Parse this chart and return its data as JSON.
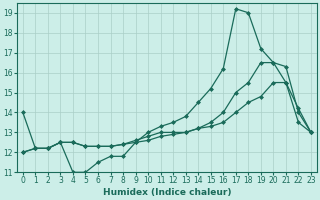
{
  "title": "",
  "xlabel": "Humidex (Indice chaleur)",
  "ylabel": "",
  "bg_color": "#cceee8",
  "line_color": "#1a6b5a",
  "grid_color": "#aacfc8",
  "ylim": [
    11,
    19.5
  ],
  "xlim": [
    -0.5,
    23.5
  ],
  "yticks": [
    11,
    12,
    13,
    14,
    15,
    16,
    17,
    18,
    19
  ],
  "xticks": [
    0,
    1,
    2,
    3,
    4,
    5,
    6,
    7,
    8,
    9,
    10,
    11,
    12,
    13,
    14,
    15,
    16,
    17,
    18,
    19,
    20,
    21,
    22,
    23
  ],
  "series": [
    [
      14.0,
      12.2,
      12.2,
      12.5,
      11.0,
      11.0,
      11.5,
      11.8,
      11.8,
      12.5,
      13.0,
      13.3,
      13.5,
      13.8,
      14.5,
      15.2,
      16.2,
      19.2,
      19.0,
      17.2,
      16.5,
      15.5,
      14.2,
      13.0
    ],
    [
      12.0,
      12.2,
      12.2,
      12.5,
      12.5,
      12.3,
      12.3,
      12.3,
      12.4,
      12.6,
      12.8,
      13.0,
      13.0,
      13.0,
      13.2,
      13.5,
      14.0,
      15.0,
      15.5,
      16.5,
      16.5,
      16.3,
      14.0,
      13.0
    ],
    [
      12.0,
      12.2,
      12.2,
      12.5,
      12.5,
      12.3,
      12.3,
      12.3,
      12.4,
      12.5,
      12.6,
      12.8,
      12.9,
      13.0,
      13.2,
      13.3,
      13.5,
      14.0,
      14.5,
      14.8,
      15.5,
      15.5,
      13.5,
      13.0
    ]
  ]
}
